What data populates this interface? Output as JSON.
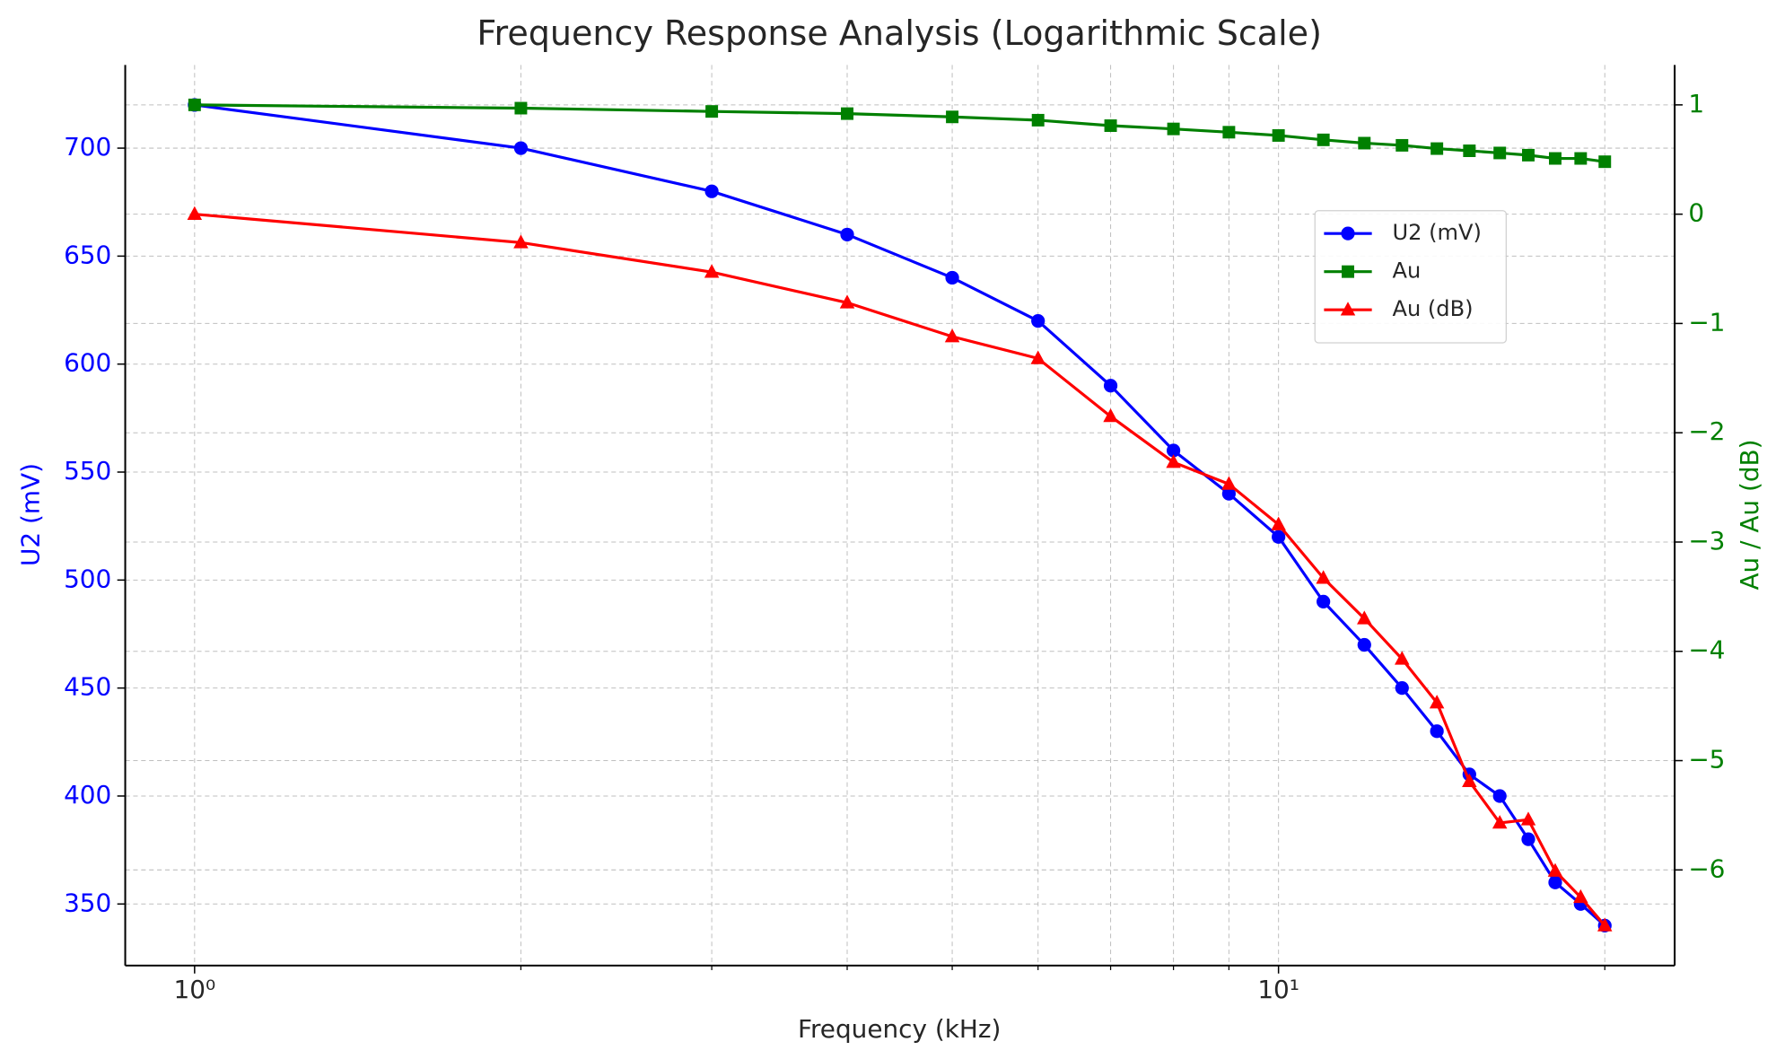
{
  "chart_data": {
    "type": "line",
    "title": "Frequency Response Analysis (Logarithmic Scale)",
    "x_label": "Frequency (kHz)",
    "y_label": "U2 (mV)",
    "y2_label": "Au / Au (dB)",
    "x": [
      1,
      2,
      3,
      4,
      5,
      6,
      7,
      8,
      9,
      10,
      11,
      12,
      13,
      14,
      15,
      16,
      17,
      18,
      19,
      20
    ],
    "xscale": "log",
    "xlim": [
      0.863,
      23.2
    ],
    "xticks": [
      {
        "value": 1,
        "label": "10⁰"
      },
      {
        "value": 10,
        "label": "10¹"
      }
    ],
    "xminor": [
      2,
      3,
      4,
      5,
      6,
      7,
      8,
      9,
      20
    ],
    "ylim": [
      321.5,
      738.5
    ],
    "yticks": [
      350,
      400,
      450,
      500,
      550,
      600,
      650,
      700
    ],
    "y2lim": [
      -6.875,
      1.365
    ],
    "y2ticks": [
      {
        "value": -6,
        "label": "−6"
      },
      {
        "value": -5,
        "label": "−5"
      },
      {
        "value": -4,
        "label": "−4"
      },
      {
        "value": -3,
        "label": "−3"
      },
      {
        "value": -2,
        "label": "−2"
      },
      {
        "value": -1,
        "label": "−1"
      },
      0,
      1
    ],
    "y_color": "#0000ff",
    "y2_color": "#008000",
    "grid": true,
    "legend": "upper right",
    "series": [
      {
        "name": "U2 (mV)",
        "color": "#0000ff",
        "marker": "circle",
        "axis": "y",
        "values": [
          720,
          700,
          680,
          660,
          640,
          620,
          590,
          560,
          540,
          520,
          490,
          470,
          450,
          430,
          410,
          400,
          380,
          360,
          350,
          340
        ]
      },
      {
        "name": "Au",
        "color": "#008000",
        "marker": "square",
        "axis": "y2",
        "values": [
          1,
          0.97,
          0.94,
          0.92,
          0.89,
          0.86,
          0.81,
          0.78,
          0.75,
          0.72,
          0.68,
          0.65,
          0.63,
          0.6,
          0.58,
          0.56,
          0.54,
          0.51,
          0.51,
          0.48
        ]
      },
      {
        "name": "Au (dB)",
        "color": "#ff0000",
        "marker": "triangle",
        "axis": "y2",
        "values": [
          0,
          -0.26,
          -0.53,
          -0.81,
          -1.12,
          -1.32,
          -1.85,
          -2.27,
          -2.47,
          -2.84,
          -3.33,
          -3.7,
          -4.07,
          -4.47,
          -5.19,
          -5.57,
          -5.54,
          -6.01,
          -6.25,
          -6.51
        ]
      }
    ]
  }
}
